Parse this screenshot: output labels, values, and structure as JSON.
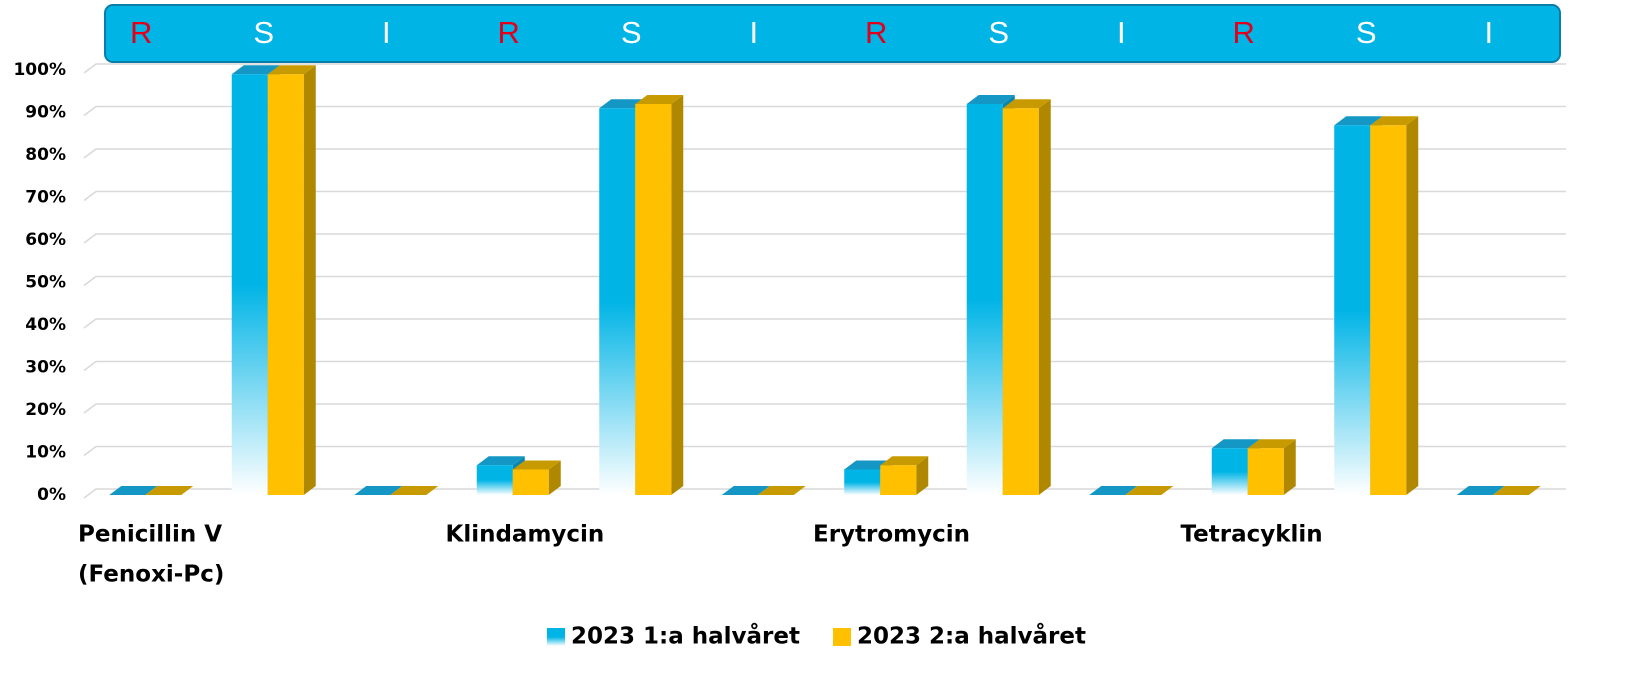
{
  "chart_data": {
    "type": "bar3d",
    "categories": [
      "R",
      "S",
      "I",
      "R",
      "S",
      "I",
      "R",
      "S",
      "I",
      "R",
      "S",
      "I"
    ],
    "category_colors": [
      "#e0001b",
      "#ffffff",
      "#ffffff",
      "#e0001b",
      "#ffffff",
      "#ffffff",
      "#e0001b",
      "#ffffff",
      "#ffffff",
      "#e0001b",
      "#ffffff",
      "#ffffff"
    ],
    "groups": [
      [
        "Penicillin V",
        "(Fenoxi-Pc)"
      ],
      [
        "Klindamycin"
      ],
      [
        "Erytromycin"
      ],
      [
        "Tetracyklin"
      ]
    ],
    "series": [
      {
        "name": "2023 1:a halvåret",
        "color": "#00b4e6",
        "values": [
          0,
          99,
          0,
          7,
          91,
          0,
          6,
          92,
          0,
          11,
          87,
          0
        ]
      },
      {
        "name": "2023 2:a halvåret",
        "color": "#ffc000",
        "values": [
          0,
          99,
          0,
          6,
          92,
          0,
          7,
          91,
          0,
          11,
          87,
          0
        ]
      }
    ],
    "ylim": [
      0,
      100
    ],
    "yticks": [
      {
        "value": 0,
        "label": "0%"
      },
      {
        "value": 10,
        "label": "10%"
      },
      {
        "value": 20,
        "label": "20%"
      },
      {
        "value": 30,
        "label": "30%"
      },
      {
        "value": 40,
        "label": "40%"
      },
      {
        "value": 50,
        "label": "50%"
      },
      {
        "value": 60,
        "label": "60%"
      },
      {
        "value": 70,
        "label": "70%"
      },
      {
        "value": 80,
        "label": "80%"
      },
      {
        "value": 90,
        "label": "90%"
      },
      {
        "value": 100,
        "label": "100%"
      }
    ],
    "grid": true,
    "legend": "bottom"
  }
}
